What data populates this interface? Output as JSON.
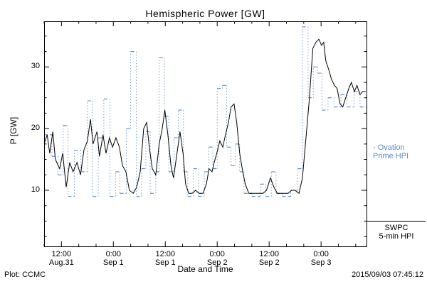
{
  "footer": {
    "source": "Plot: CCMC",
    "timestamp": "2015/09/03 07:45:12"
  },
  "legend": {
    "ovation": {
      "line1": "- Ovation",
      "line2": "Prime HPI",
      "color": "#5b8bc9"
    },
    "swpc": {
      "line1": "SWPC",
      "line2": "5-min HPI",
      "color": "#000000"
    }
  },
  "chart_data": {
    "type": "line",
    "title": "Hemispheric Power [GW]",
    "xlabel": "Date and Time",
    "ylabel": "P [GW]",
    "ylim": [
      0.9,
      37.4
    ],
    "xlim_hours": [
      0,
      74.5
    ],
    "yticks": [
      10,
      20,
      30
    ],
    "y_minor_step": 2.5,
    "x_minor_step": 4,
    "grid": false,
    "legend_position": "right-outside",
    "xticks": [
      {
        "t": 4,
        "time": "12:00",
        "date": "Aug.31"
      },
      {
        "t": 16,
        "time": "0:00",
        "date": "Sep 1"
      },
      {
        "t": 28,
        "time": "12:00",
        "date": "Sep 1"
      },
      {
        "t": 40,
        "time": "0:00",
        "date": "Sep 2"
      },
      {
        "t": 52,
        "time": "12:00",
        "date": "Sep 2"
      },
      {
        "t": 64,
        "time": "0:00",
        "date": "Sep 3"
      }
    ],
    "series": [
      {
        "name": "Ovation Prime HPI",
        "type": "step",
        "color": "#5b8bc9",
        "line_style": "dashed levels with dotted vertical connectors",
        "points": [
          [
            0,
            19
          ],
          [
            1.8,
            15.5
          ],
          [
            3.2,
            12.5
          ],
          [
            4.4,
            20.5
          ],
          [
            5.5,
            9
          ],
          [
            7,
            16.5
          ],
          [
            8.5,
            13
          ],
          [
            10,
            24.5
          ],
          [
            11.2,
            9
          ],
          [
            12.5,
            18.5
          ],
          [
            13.8,
            24.8
          ],
          [
            15.2,
            9
          ],
          [
            16.5,
            13
          ],
          [
            17.5,
            9.5
          ],
          [
            19,
            20
          ],
          [
            20,
            32.5
          ],
          [
            21.3,
            9
          ],
          [
            22.5,
            13.5
          ],
          [
            23.5,
            19.5
          ],
          [
            24.5,
            9.5
          ],
          [
            25.8,
            13
          ],
          [
            26.6,
            31.5
          ],
          [
            27.8,
            22
          ],
          [
            28.8,
            13
          ],
          [
            30,
            18.5
          ],
          [
            31,
            23
          ],
          [
            32.2,
            13
          ],
          [
            33.2,
            9
          ],
          [
            34.5,
            13.5
          ],
          [
            35.6,
            9
          ],
          [
            37,
            13
          ],
          [
            38,
            17
          ],
          [
            39,
            13.5
          ],
          [
            40,
            26.5
          ],
          [
            41.2,
            27
          ],
          [
            42.2,
            17
          ],
          [
            43.2,
            14
          ],
          [
            44.2,
            17.5
          ],
          [
            45.2,
            13
          ],
          [
            46.2,
            9.5
          ],
          [
            48,
            9
          ],
          [
            50,
            11
          ],
          [
            51.2,
            9
          ],
          [
            52.5,
            13
          ],
          [
            53.6,
            9.5
          ],
          [
            55,
            9
          ],
          [
            57,
            10
          ],
          [
            58.6,
            13.5
          ],
          [
            59.6,
            36.5
          ],
          [
            61,
            25
          ],
          [
            62.2,
            30
          ],
          [
            63.2,
            29
          ],
          [
            64.2,
            23
          ],
          [
            65.6,
            25
          ],
          [
            67,
            23.5
          ],
          [
            68.6,
            25.5
          ],
          [
            70,
            23.5
          ],
          [
            71.6,
            26
          ],
          [
            73,
            23.5
          ]
        ]
      },
      {
        "name": "SWPC 5-min HPI",
        "type": "line",
        "color": "#000000",
        "line_style": "solid",
        "points": [
          [
            0,
            17.5
          ],
          [
            0.7,
            19
          ],
          [
            1.3,
            16
          ],
          [
            2,
            19.5
          ],
          [
            2.6,
            15
          ],
          [
            3.6,
            13.5
          ],
          [
            4.3,
            16
          ],
          [
            5.1,
            10.5
          ],
          [
            5.9,
            14.5
          ],
          [
            6.7,
            13
          ],
          [
            7.6,
            14.5
          ],
          [
            8.4,
            12.5
          ],
          [
            9.2,
            16.5
          ],
          [
            10,
            18
          ],
          [
            10.7,
            21.5
          ],
          [
            11.3,
            17.5
          ],
          [
            12.2,
            19.5
          ],
          [
            12.8,
            15.5
          ],
          [
            13.6,
            19
          ],
          [
            14.3,
            16
          ],
          [
            15.1,
            18.5
          ],
          [
            15.8,
            17
          ],
          [
            16.6,
            18.5
          ],
          [
            17.4,
            17
          ],
          [
            18.1,
            14
          ],
          [
            18.9,
            13
          ],
          [
            19.7,
            10
          ],
          [
            20.6,
            9.5
          ],
          [
            21.4,
            10.5
          ],
          [
            22.2,
            13
          ],
          [
            23,
            20
          ],
          [
            23.7,
            21
          ],
          [
            24.3,
            17
          ],
          [
            25,
            13.5
          ],
          [
            25.8,
            12.5
          ],
          [
            26.6,
            17.5
          ],
          [
            27.3,
            20
          ],
          [
            27.9,
            23
          ],
          [
            28.6,
            19
          ],
          [
            29.3,
            14
          ],
          [
            29.9,
            12
          ],
          [
            30.7,
            16
          ],
          [
            31.4,
            19.5
          ],
          [
            32.1,
            16
          ],
          [
            32.7,
            11
          ],
          [
            33.4,
            9.5
          ],
          [
            34.2,
            9.5
          ],
          [
            35,
            10
          ],
          [
            35.8,
            9.5
          ],
          [
            36.7,
            9.5
          ],
          [
            37.5,
            11
          ],
          [
            38.1,
            13.5
          ],
          [
            38.8,
            13
          ],
          [
            39.3,
            14.5
          ],
          [
            39.9,
            16
          ],
          [
            40.6,
            18
          ],
          [
            41.3,
            17
          ],
          [
            41.9,
            19
          ],
          [
            42.6,
            21
          ],
          [
            43.2,
            23.5
          ],
          [
            43.9,
            24
          ],
          [
            44.5,
            21
          ],
          [
            45.2,
            16
          ],
          [
            45.9,
            13
          ],
          [
            46.5,
            11
          ],
          [
            47.3,
            9.5
          ],
          [
            48.2,
            9.5
          ],
          [
            49,
            9.5
          ],
          [
            49.8,
            9.5
          ],
          [
            50.6,
            9.5
          ],
          [
            51.4,
            10
          ],
          [
            52.3,
            12
          ],
          [
            53.1,
            10.5
          ],
          [
            53.9,
            9.5
          ],
          [
            54.7,
            9.5
          ],
          [
            55.6,
            9.5
          ],
          [
            56.4,
            9.5
          ],
          [
            57.2,
            10
          ],
          [
            58,
            10
          ],
          [
            58.9,
            9.5
          ],
          [
            59.7,
            12
          ],
          [
            60.2,
            16
          ],
          [
            60.7,
            20
          ],
          [
            61.2,
            24
          ],
          [
            61.6,
            28
          ],
          [
            62.1,
            33
          ],
          [
            62.8,
            34
          ],
          [
            63.5,
            34.5
          ],
          [
            64.1,
            33.5
          ],
          [
            64.6,
            34
          ],
          [
            65.1,
            31
          ],
          [
            65.8,
            29.5
          ],
          [
            66.4,
            28
          ],
          [
            67.1,
            27
          ],
          [
            67.7,
            26.5
          ],
          [
            68.4,
            24
          ],
          [
            69,
            23.5
          ],
          [
            69.7,
            25
          ],
          [
            70.4,
            26.5
          ],
          [
            71,
            27.5
          ],
          [
            71.7,
            26
          ],
          [
            72.3,
            27
          ],
          [
            73,
            25.5
          ],
          [
            73.6,
            26
          ],
          [
            74.3,
            26
          ]
        ]
      }
    ]
  }
}
